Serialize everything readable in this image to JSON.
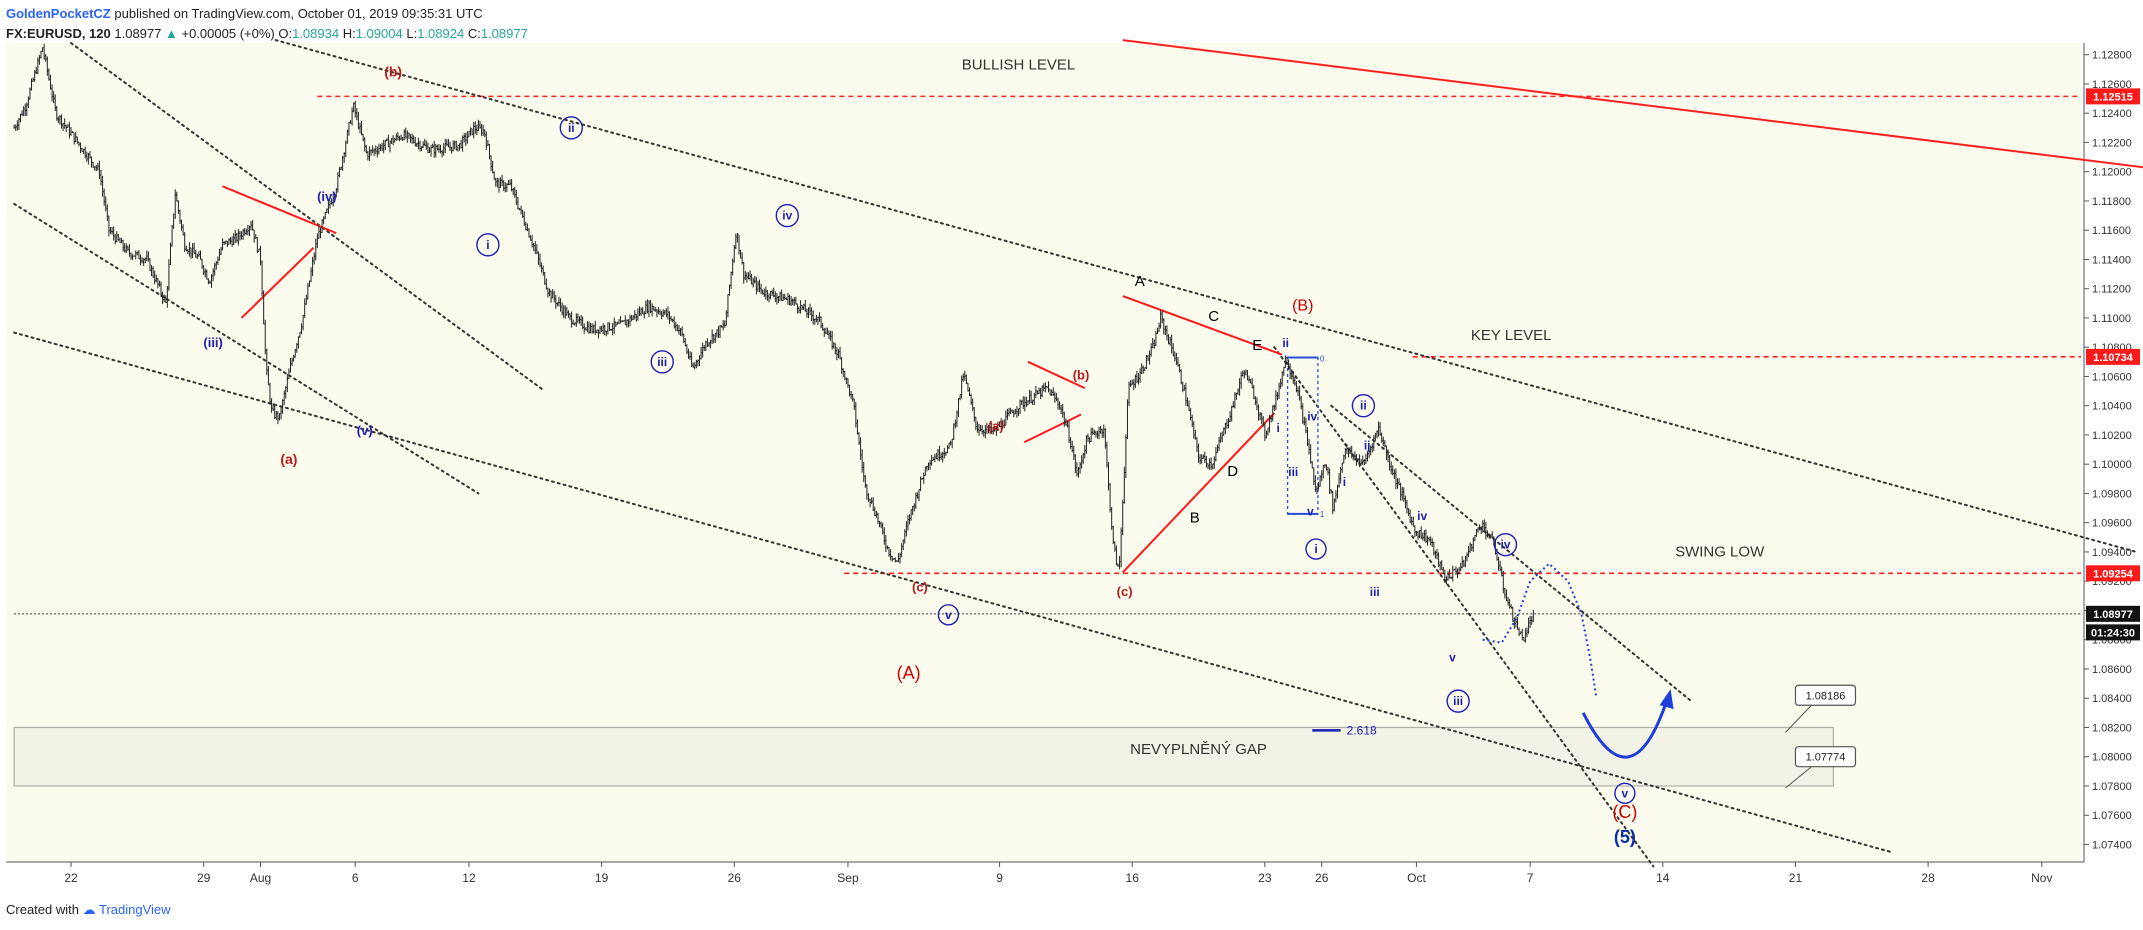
{
  "header": {
    "author": "GoldenPocketCZ",
    "published": "published on TradingView.com, October 01, 2019 09:35:31 UTC",
    "symbol": "FX:EURUSD, 120",
    "last": "1.08977",
    "change_arrow": "▲",
    "change": "+0.00005 (+0%)",
    "o_label": "O:",
    "o": "1.08934",
    "h_label": "H:",
    "h": "1.09004",
    "l_label": "L:",
    "l": "1.08924",
    "c_label": "C:",
    "c": "1.08977"
  },
  "footer": {
    "created_with": "Created with",
    "brand": "TradingView"
  },
  "colors": {
    "background": "#fbfbee",
    "red": "#ff0000",
    "blue": "#1e1eb4",
    "dark_red": "#b71c1c",
    "candle": "#222222"
  },
  "chart_data": {
    "type": "candlestick",
    "ylim": [
      1.0728,
      1.1288
    ],
    "x_ticks": [
      {
        "label": "22",
        "d": 0
      },
      {
        "label": "29",
        "d": 7
      },
      {
        "label": "Aug",
        "d": 10
      },
      {
        "label": "6",
        "d": 15
      },
      {
        "label": "12",
        "d": 21
      },
      {
        "label": "19",
        "d": 28
      },
      {
        "label": "26",
        "d": 35
      },
      {
        "label": "Sep",
        "d": 41
      },
      {
        "label": "9",
        "d": 49
      },
      {
        "label": "16",
        "d": 56
      },
      {
        "label": "23",
        "d": 63
      },
      {
        "label": "26",
        "d": 66
      },
      {
        "label": "Oct",
        "d": 71
      },
      {
        "label": "7",
        "d": 77
      },
      {
        "label": "14",
        "d": 84
      },
      {
        "label": "21",
        "d": 91
      },
      {
        "label": "28",
        "d": 98
      },
      {
        "label": "Nov",
        "d": 104
      }
    ],
    "y_ticks": [
      "1.12800",
      "1.12600",
      "1.12400",
      "1.12200",
      "1.12000",
      "1.11800",
      "1.11600",
      "1.11400",
      "1.11200",
      "1.11000",
      "1.10800",
      "1.10600",
      "1.10400",
      "1.10200",
      "1.10000",
      "1.09800",
      "1.09600",
      "1.09400",
      "1.09200",
      "1.09000",
      "1.08800",
      "1.08600",
      "1.08400",
      "1.08200",
      "1.08000",
      "1.07800",
      "1.07600",
      "1.07400"
    ],
    "price_path": [
      [
        -3,
        1.123
      ],
      [
        -2.4,
        1.1245
      ],
      [
        -1.5,
        1.1285
      ],
      [
        -0.8,
        1.124
      ],
      [
        1.5,
        1.12
      ],
      [
        2,
        1.116
      ],
      [
        3,
        1.1145
      ],
      [
        4,
        1.114
      ],
      [
        5,
        1.111
      ],
      [
        5.5,
        1.1185
      ],
      [
        6,
        1.115
      ],
      [
        6.8,
        1.114
      ],
      [
        7.3,
        1.1125
      ],
      [
        8,
        1.115
      ],
      [
        8.8,
        1.1155
      ],
      [
        9.5,
        1.1165
      ],
      [
        10,
        1.114
      ],
      [
        10.3,
        1.1065
      ],
      [
        10.6,
        1.1035
      ],
      [
        11,
        1.1032
      ],
      [
        11.6,
        1.1068
      ],
      [
        12.2,
        1.1098
      ],
      [
        13,
        1.1155
      ],
      [
        14,
        1.119
      ],
      [
        14.9,
        1.1245
      ],
      [
        15.6,
        1.1212
      ],
      [
        17.5,
        1.1225
      ],
      [
        19,
        1.1215
      ],
      [
        20.5,
        1.1218
      ],
      [
        21.3,
        1.123
      ],
      [
        21.8,
        1.1228
      ],
      [
        22.4,
        1.1192
      ],
      [
        23.2,
        1.119
      ],
      [
        24.4,
        1.115
      ],
      [
        25.2,
        1.1118
      ],
      [
        26.3,
        1.11
      ],
      [
        27.5,
        1.1092
      ],
      [
        29,
        1.1095
      ],
      [
        30.5,
        1.1108
      ],
      [
        31.5,
        1.1102
      ],
      [
        32.2,
        1.109
      ],
      [
        32.8,
        1.1065
      ],
      [
        33.5,
        1.1083
      ],
      [
        34.5,
        1.1095
      ],
      [
        35.1,
        1.116
      ],
      [
        35.5,
        1.113
      ],
      [
        36.5,
        1.1118
      ],
      [
        38,
        1.1112
      ],
      [
        39.5,
        1.1098
      ],
      [
        40.5,
        1.1075
      ],
      [
        41.3,
        1.104
      ],
      [
        41.9,
        1.0985
      ],
      [
        42.5,
        1.0965
      ],
      [
        43.1,
        1.0942
      ],
      [
        43.6,
        1.0932
      ],
      [
        44.2,
        1.0962
      ],
      [
        45.2,
        1.1002
      ],
      [
        46.4,
        1.1012
      ],
      [
        47.1,
        1.1062
      ],
      [
        47.8,
        1.1025
      ],
      [
        48.7,
        1.1022
      ],
      [
        50,
        1.104
      ],
      [
        51.5,
        1.1052
      ],
      [
        52.2,
        1.104
      ],
      [
        52.7,
        1.1018
      ],
      [
        53.1,
        1.0992
      ],
      [
        53.6,
        1.1017
      ],
      [
        54.5,
        1.1025
      ],
      [
        55,
        1.0945
      ],
      [
        55.3,
        1.0925
      ],
      [
        55.8,
        1.1052
      ],
      [
        56.4,
        1.1062
      ],
      [
        57.1,
        1.108
      ],
      [
        57.5,
        1.11
      ],
      [
        58.3,
        1.1072
      ],
      [
        58.9,
        1.1042
      ],
      [
        59.5,
        1.1005
      ],
      [
        60.2,
        1.1
      ],
      [
        61.2,
        1.1036
      ],
      [
        61.9,
        1.1065
      ],
      [
        62.5,
        1.1045
      ],
      [
        63,
        1.102
      ],
      [
        63.6,
        1.1045
      ],
      [
        64.1,
        1.1073
      ],
      [
        64.7,
        1.1052
      ],
      [
        65.3,
        1.1012
      ],
      [
        65.7,
        1.098
      ],
      [
        66.2,
        1.1003
      ],
      [
        66.6,
        1.097
      ],
      [
        67.2,
        1.101
      ],
      [
        68.2,
        1.1
      ],
      [
        69,
        1.1025
      ],
      [
        69.6,
        1.1
      ],
      [
        70.2,
        1.098
      ],
      [
        70.9,
        1.0955
      ],
      [
        71.7,
        1.0948
      ],
      [
        72.5,
        1.0922
      ],
      [
        73.4,
        1.093
      ],
      [
        74.4,
        1.096
      ],
      [
        75.1,
        1.0945
      ],
      [
        75.6,
        1.0915
      ],
      [
        76.1,
        1.0895
      ],
      [
        76.6,
        1.088
      ],
      [
        77.2,
        1.0898
      ]
    ],
    "price_tags": [
      {
        "label": "1.12515",
        "y": 1.12515,
        "style": "red"
      },
      {
        "label": "1.10734",
        "y": 1.10734,
        "style": "red"
      },
      {
        "label": "1.09254",
        "y": 1.09254,
        "style": "red"
      },
      {
        "label": "1.08977",
        "y": 1.08977,
        "style": "black"
      },
      {
        "label": "01:24:30",
        "y": 1.0885,
        "style": "black"
      }
    ],
    "h_lines": [
      {
        "y": 1.12515,
        "d0": 13,
        "d1": 120,
        "color": "red",
        "dash": true
      },
      {
        "y": 1.10734,
        "d0": 70.8,
        "d1": 120,
        "color": "red",
        "dash": true
      },
      {
        "y": 1.09254,
        "d0": 40.8,
        "d1": 120,
        "color": "red",
        "dash": true
      },
      {
        "y": 1.08977,
        "d0": -3,
        "d1": 120,
        "color": "dark",
        "dash": true
      }
    ],
    "trend_lines": [
      {
        "d0": 55.5,
        "y0": 1.129,
        "d1": 110,
        "y0b": 0,
        "y1": 1.1202,
        "color": "red",
        "width": 2
      },
      {
        "d0": 10.8,
        "y0": 1.129,
        "d1": 109,
        "y1": 1.094,
        "color": "dark",
        "dots": true
      },
      {
        "d0": 0,
        "y0": 1.1288,
        "d1": 25,
        "y1": 1.105,
        "color": "dark",
        "dots": true
      },
      {
        "d0": -3,
        "y0": 1.1178,
        "d1": 21.5,
        "y1": 1.098,
        "color": "dark",
        "dots": true
      },
      {
        "d0": -3,
        "y0": 1.109,
        "d1": 96,
        "y1": 1.0735,
        "color": "dark",
        "dots": true
      },
      {
        "d0": 63.5,
        "y0": 1.108,
        "d1": 83.5,
        "y1": 1.0725,
        "color": "dark",
        "dots": true
      },
      {
        "d0": 66.5,
        "y0": 1.104,
        "d1": 85.5,
        "y1": 1.0838,
        "color": "dark",
        "dots": true
      }
    ],
    "red_segments": [
      {
        "d0": 8,
        "y0": 1.119,
        "d1": 14,
        "y1": 1.1158
      },
      {
        "d0": 9,
        "y0": 1.11,
        "d1": 12.8,
        "y1": 1.1148
      },
      {
        "d0": 50.5,
        "y0": 1.107,
        "d1": 53.5,
        "y1": 1.1052
      },
      {
        "d0": 50.3,
        "y0": 1.1015,
        "d1": 53.3,
        "y1": 1.1034
      },
      {
        "d0": 55.5,
        "y0": 1.1115,
        "d1": 63.9,
        "y1": 1.1075
      },
      {
        "d0": 55.5,
        "y0": 1.0926,
        "d1": 63.5,
        "y1": 1.1035
      }
    ],
    "zone": {
      "label": "NEVYPLNĚNÝ GAP",
      "y_top": 1.082,
      "y_bottom": 1.078,
      "d0": -3,
      "d1": 93
    },
    "fib": {
      "label": "2.618",
      "y": 1.0818,
      "d0": 65.5,
      "d1": 67
    },
    "text_labels": [
      {
        "text": "BULLISH LEVEL",
        "d": 50,
        "y": 1.127,
        "color": "#333333",
        "size": 15
      },
      {
        "text": "KEY LEVEL",
        "d": 76,
        "y": 1.1085,
        "color": "#333333",
        "size": 15
      },
      {
        "text": "SWING LOW",
        "d": 87,
        "y": 1.0937,
        "color": "#333333",
        "size": 15
      },
      {
        "text": "NEVYPLNĚNÝ GAP",
        "d": 59.5,
        "y": 1.0802,
        "color": "#333333",
        "size": 15
      },
      {
        "text": "(b)",
        "d": 17,
        "y": 1.1265,
        "color": "#b71c1c",
        "size": 14,
        "bold": true
      },
      {
        "text": "(a)",
        "d": 11.5,
        "y": 1.1,
        "color": "#b71c1c",
        "size": 14,
        "bold": true
      },
      {
        "text": "(c)",
        "d": 44.8,
        "y": 1.0913,
        "color": "#b71c1c",
        "size": 13,
        "bold": true
      },
      {
        "text": "(A)",
        "d": 44.2,
        "y": 1.0853,
        "color": "#cc0000",
        "size": 18
      },
      {
        "text": "(a)",
        "d": 48.8,
        "y": 1.1023,
        "color": "#b71c1c",
        "size": 13,
        "bold": true
      },
      {
        "text": "(b)",
        "d": 53.3,
        "y": 1.1058,
        "color": "#b71c1c",
        "size": 13,
        "bold": true
      },
      {
        "text": "(c)",
        "d": 55.6,
        "y": 1.091,
        "color": "#b71c1c",
        "size": 13,
        "bold": true
      },
      {
        "text": "(B)",
        "d": 65,
        "y": 1.1105,
        "color": "#cc0000",
        "size": 16
      },
      {
        "text": "(C)",
        "d": 82,
        "y": 1.0758,
        "color": "#cc0000",
        "size": 18
      },
      {
        "text": "(5)",
        "d": 82,
        "y": 1.0741,
        "color": "#0d2ea8",
        "size": 18,
        "bold": true
      },
      {
        "text": "A",
        "d": 56.4,
        "y": 1.1122,
        "color": "#000000",
        "size": 15
      },
      {
        "text": "B",
        "d": 59.3,
        "y": 1.096,
        "color": "#000000",
        "size": 15
      },
      {
        "text": "C",
        "d": 60.3,
        "y": 1.1098,
        "color": "#000000",
        "size": 15
      },
      {
        "text": "D",
        "d": 61.3,
        "y": 1.0992,
        "color": "#000000",
        "size": 15
      },
      {
        "text": "E",
        "d": 62.6,
        "y": 1.1078,
        "color": "#000000",
        "size": 15
      },
      {
        "text": "(iv)",
        "d": 13.5,
        "y": 1.118,
        "color": "#1e1eb4",
        "size": 13,
        "bold": true
      },
      {
        "text": "(iii)",
        "d": 7.5,
        "y": 1.108,
        "color": "#1e1eb4",
        "size": 13,
        "bold": true
      },
      {
        "text": "(v)",
        "d": 15.5,
        "y": 1.102,
        "color": "#1e1eb4",
        "size": 13,
        "bold": true
      },
      {
        "text": "ii",
        "d": 64.1,
        "y": 1.108,
        "color": "#1e1eb4",
        "size": 12,
        "bold": true
      },
      {
        "text": "i",
        "d": 63.7,
        "y": 1.1022,
        "color": "#1e1eb4",
        "size": 12,
        "bold": true
      },
      {
        "text": "iii",
        "d": 64.5,
        "y": 1.0992,
        "color": "#1e1eb4",
        "size": 12,
        "bold": true
      },
      {
        "text": "iv",
        "d": 65.5,
        "y": 1.103,
        "color": "#1e1eb4",
        "size": 12,
        "bold": true
      },
      {
        "text": "v",
        "d": 65.4,
        "y": 1.0965,
        "color": "#1e1eb4",
        "size": 12,
        "bold": true
      },
      {
        "text": "ij",
        "d": 68.4,
        "y": 1.101,
        "color": "#1e1eb4",
        "size": 12,
        "bold": true
      },
      {
        "text": "i",
        "d": 67.2,
        "y": 1.0985,
        "color": "#1e1eb4",
        "size": 12,
        "bold": true
      },
      {
        "text": "iii",
        "d": 68.8,
        "y": 1.091,
        "color": "#1e1eb4",
        "size": 12,
        "bold": true
      },
      {
        "text": "iv",
        "d": 71.3,
        "y": 1.0962,
        "color": "#1e1eb4",
        "size": 12,
        "bold": true
      },
      {
        "text": "v",
        "d": 72.9,
        "y": 1.0865,
        "color": "#1e1eb4",
        "size": 12,
        "bold": true
      }
    ],
    "circled_labels": [
      {
        "text": "i",
        "d": 22,
        "y": 1.115,
        "r": 11
      },
      {
        "text": "ii",
        "d": 26.4,
        "y": 1.123,
        "r": 11
      },
      {
        "text": "iii",
        "d": 31.2,
        "y": 1.107,
        "r": 11
      },
      {
        "text": "iv",
        "d": 37.8,
        "y": 1.117,
        "r": 11
      },
      {
        "text": "v",
        "d": 46.3,
        "y": 1.0897,
        "r": 10
      },
      {
        "text": "i",
        "d": 65.7,
        "y": 1.0942,
        "r": 10
      },
      {
        "text": "ii",
        "d": 68.2,
        "y": 1.104,
        "r": 11
      },
      {
        "text": "iii",
        "d": 73.2,
        "y": 1.0838,
        "r": 11
      },
      {
        "text": "iv",
        "d": 75.7,
        "y": 1.0945,
        "r": 11
      },
      {
        "text": "v",
        "d": 82,
        "y": 1.0775,
        "r": 10
      }
    ],
    "callouts": [
      {
        "label": "1.08186",
        "y": 1.0842,
        "d": 91,
        "arrow_y": 1.0818
      },
      {
        "label": "1.07774",
        "y": 1.08,
        "d": 91,
        "arrow_y": 1.078
      }
    ],
    "projection_dotted": [
      [
        74.5,
        1.088
      ],
      [
        75.5,
        1.0878
      ],
      [
        76.3,
        1.0895
      ],
      [
        77,
        1.092
      ],
      [
        78,
        1.0932
      ],
      [
        79,
        1.092
      ],
      [
        79.7,
        1.0898
      ],
      [
        80.2,
        1.0865
      ],
      [
        80.5,
        1.084
      ]
    ],
    "projection_arc": [
      [
        79.8,
        1.083
      ],
      [
        81,
        1.08
      ],
      [
        82.3,
        1.0793
      ],
      [
        83.6,
        1.0808
      ],
      [
        84.2,
        1.0838
      ]
    ],
    "dashed_box": {
      "d0": 64.2,
      "y0": 1.1073,
      "d1": 65.8,
      "y1": 1.0966,
      "label_top": "0",
      "label_bottom": "1"
    }
  }
}
